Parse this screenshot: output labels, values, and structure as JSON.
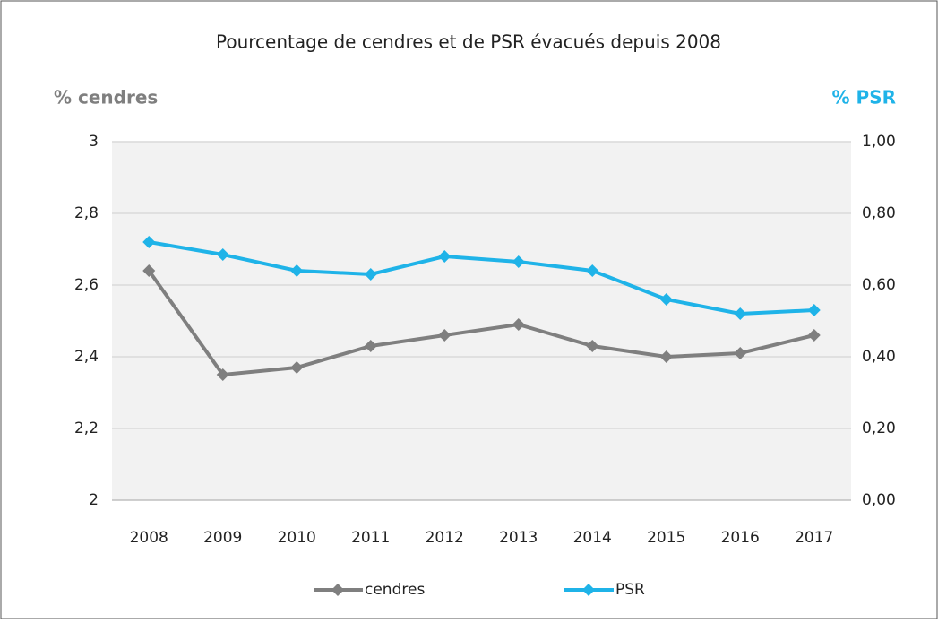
{
  "chart_data": {
    "type": "line",
    "title": "Pourcentage de cendres et de PSR évacués depuis 2008",
    "y_label": "% cendres",
    "y2_label": "% PSR",
    "categories": [
      "2008",
      "2009",
      "2010",
      "2011",
      "2012",
      "2013",
      "2014",
      "2015",
      "2016",
      "2017"
    ],
    "series": [
      {
        "name": "cendres",
        "color": "#7f7f7f",
        "values": [
          2.64,
          2.35,
          2.37,
          2.43,
          2.46,
          2.49,
          2.43,
          2.4,
          2.41,
          2.46
        ]
      },
      {
        "name": "PSR",
        "color": "#1fb3e8",
        "axis": "y2",
        "values": [
          0.72,
          0.685,
          0.64,
          0.63,
          0.68,
          0.665,
          0.64,
          0.56,
          0.52,
          0.53
        ]
      }
    ],
    "ylim": [
      2,
      3
    ],
    "yticks": [
      2,
      {
        "value": 2.2,
        "label": "2,2"
      },
      {
        "value": 2.4,
        "label": "2,4"
      },
      {
        "value": 2.6,
        "label": "2,6"
      },
      {
        "value": 2.8,
        "label": "2,8"
      },
      3
    ],
    "y2lim": [
      0,
      1
    ],
    "y2ticks": [
      {
        "value": 0,
        "label": "0,00"
      },
      {
        "value": 0.2,
        "label": "0,20"
      },
      {
        "value": 0.4,
        "label": "0,40"
      },
      {
        "value": 0.6,
        "label": "0,60"
      },
      {
        "value": 0.8,
        "label": "0,80"
      },
      {
        "value": 1,
        "label": "1,00"
      }
    ],
    "grid": true,
    "legend": "bottom"
  }
}
